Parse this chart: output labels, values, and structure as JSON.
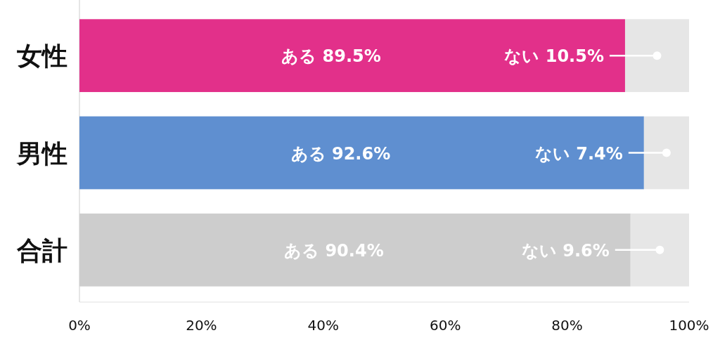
{
  "chart_data": {
    "type": "bar",
    "orientation": "horizontal",
    "stacked": true,
    "categories": [
      "女性",
      "男性",
      "合計"
    ],
    "series": [
      {
        "values": [
          89.5,
          92.6,
          90.4
        ],
        "colors": [
          "#e2308a",
          "#5f8fd0",
          "#cdcdcd"
        ],
        "value_labels": [
          "ある 89.5%",
          "ある 92.6%",
          "ある 90.4%"
        ]
      },
      {
        "values": [
          10.5,
          7.4,
          9.6
        ],
        "color": "#e6e6e6",
        "value_labels": [
          "ない 10.5%",
          "ない 7.4%",
          "ない 9.6%"
        ]
      }
    ],
    "xlim": [
      0,
      100
    ],
    "xticks": [
      {
        "value": 0,
        "label": "0%"
      },
      {
        "value": 20,
        "label": "20%"
      },
      {
        "value": 40,
        "label": "40%"
      },
      {
        "value": 60,
        "label": "60%"
      },
      {
        "value": 80,
        "label": "80%"
      },
      {
        "value": 100,
        "label": "100%"
      }
    ]
  }
}
